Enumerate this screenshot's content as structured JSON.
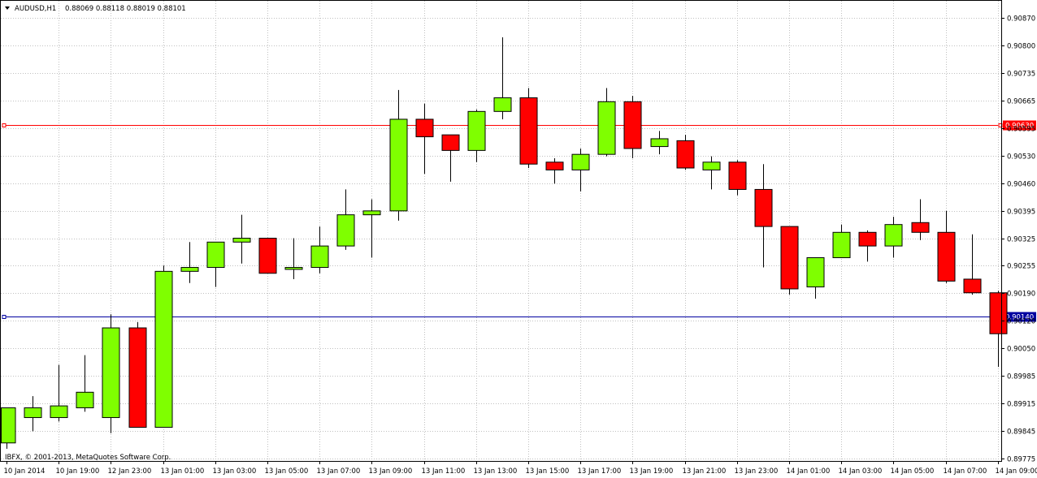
{
  "header": {
    "menu_icon": "triangle-down-icon",
    "symbol": "AUDUSD,H1",
    "ohlc": "0.88069 0.88118 0.88019 0.88101"
  },
  "footer": {
    "copyright": "IBFX, © 2001-2013, MetaQuotes Software Corp."
  },
  "colors": {
    "bull": "#7FFF00",
    "bear": "#FF0000",
    "wick": "#000000",
    "grid": "#C0C0C0",
    "resistance_line": "#FF0000",
    "support_line": "#0000A0"
  },
  "chart_data": {
    "type": "candlestick",
    "y_axis_range": [
      0.89775,
      0.90905
    ],
    "y_ticks": [
      "0.90870",
      "0.90800",
      "0.90735",
      "0.90665",
      "0.90595",
      "0.90530",
      "0.90460",
      "0.90395",
      "0.90325",
      "0.90255",
      "0.90190",
      "0.90120",
      "0.90050",
      "0.89985",
      "0.89915",
      "0.89845",
      "0.89775"
    ],
    "x_labels": [
      "10 Jan 2014",
      "10 Jan 19:00",
      "12 Jan 23:00",
      "13 Jan 01:00",
      "13 Jan 03:00",
      "13 Jan 05:00",
      "13 Jan 07:00",
      "13 Jan 09:00",
      "13 Jan 11:00",
      "13 Jan 13:00",
      "13 Jan 15:00",
      "13 Jan 17:00",
      "13 Jan 19:00",
      "13 Jan 21:00",
      "13 Jan 23:00",
      "14 Jan 01:00",
      "14 Jan 03:00",
      "14 Jan 05:00",
      "14 Jan 07:00",
      "14 Jan 09:00"
    ],
    "levels": [
      {
        "label": "0.90630",
        "value": 0.9063,
        "color": "#FF0000"
      },
      {
        "label": "0.90140",
        "value": 0.9014,
        "color": "#0000A0"
      }
    ],
    "candles": [
      [
        0.89815,
        0.89905,
        0.898,
        0.89905
      ],
      [
        0.8988,
        0.89905,
        0.89845,
        0.89935
      ],
      [
        0.8988,
        0.8991,
        0.8987,
        0.90015
      ],
      [
        0.89905,
        0.89945,
        0.89895,
        0.9004
      ],
      [
        0.8988,
        0.9011,
        0.8984,
        0.90145
      ],
      [
        0.9011,
        0.89855,
        0.89855,
        0.90125
      ],
      [
        0.89855,
        0.90255,
        0.89855,
        0.9027
      ],
      [
        0.90255,
        0.90265,
        0.90225,
        0.9033
      ],
      [
        0.90265,
        0.9033,
        0.90215,
        0.9033
      ],
      [
        0.9033,
        0.9034,
        0.90275,
        0.904
      ],
      [
        0.9034,
        0.9025,
        0.9025,
        0.9034
      ],
      [
        0.9026,
        0.90265,
        0.90235,
        0.9034
      ],
      [
        0.90265,
        0.9032,
        0.9025,
        0.9037
      ],
      [
        0.9032,
        0.904,
        0.9031,
        0.90465
      ],
      [
        0.904,
        0.9041,
        0.9029,
        0.9044
      ],
      [
        0.9041,
        0.90645,
        0.90385,
        0.9072
      ],
      [
        0.90645,
        0.906,
        0.90505,
        0.90685
      ],
      [
        0.90605,
        0.90565,
        0.90485,
        0.90605
      ],
      [
        0.90565,
        0.90665,
        0.90535,
        0.9067
      ],
      [
        0.90665,
        0.907,
        0.90645,
        0.90855
      ],
      [
        0.907,
        0.9053,
        0.9052,
        0.90725
      ],
      [
        0.90535,
        0.90515,
        0.9048,
        0.90545
      ],
      [
        0.90515,
        0.90555,
        0.9046,
        0.9057
      ],
      [
        0.90555,
        0.9069,
        0.9055,
        0.90725
      ],
      [
        0.9069,
        0.9057,
        0.90545,
        0.90705
      ],
      [
        0.90575,
        0.90595,
        0.90555,
        0.90615
      ],
      [
        0.9059,
        0.9052,
        0.90515,
        0.90605
      ],
      [
        0.90515,
        0.90535,
        0.90465,
        0.9055
      ],
      [
        0.90535,
        0.90465,
        0.9045,
        0.9054
      ],
      [
        0.90465,
        0.9037,
        0.90265,
        0.9053
      ],
      [
        0.9037,
        0.9021,
        0.90195,
        0.9037
      ],
      [
        0.90215,
        0.9029,
        0.90185,
        0.9029
      ],
      [
        0.9029,
        0.90355,
        0.9029,
        0.90375
      ],
      [
        0.90355,
        0.9032,
        0.9028,
        0.9036
      ],
      [
        0.9032,
        0.90375,
        0.9029,
        0.90395
      ],
      [
        0.9038,
        0.90355,
        0.90335,
        0.9044
      ],
      [
        0.90355,
        0.9023,
        0.90225,
        0.9041
      ],
      [
        0.90235,
        0.902,
        0.90195,
        0.9035
      ],
      [
        0.902,
        0.90095,
        0.9001,
        0.90205
      ]
    ]
  }
}
